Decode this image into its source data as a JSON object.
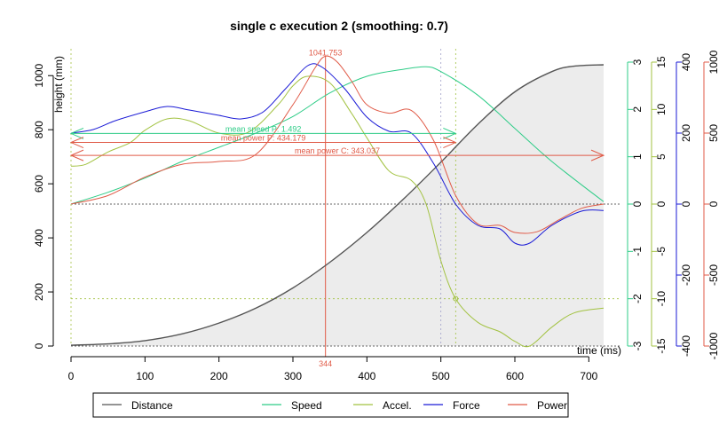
{
  "chart_data": {
    "type": "line",
    "title": "single c execution 2 (smoothing: 0.7)",
    "xlabel": "time (ms)",
    "ylabel": "height (mm)",
    "xlim": [
      0,
      720
    ],
    "ylim": [
      0,
      1050
    ],
    "x_ticks": [
      0,
      100,
      200,
      300,
      400,
      500,
      600,
      700
    ],
    "y_ticks": [
      0,
      200,
      400,
      600,
      800,
      1000
    ],
    "axes": {
      "speed": {
        "color": "#2ecc87",
        "lim": [
          -3,
          3
        ],
        "ticks": [
          -3,
          -2,
          -1,
          0,
          1,
          2,
          3
        ]
      },
      "accel": {
        "color": "#a2c241",
        "lim": [
          -15,
          15
        ],
        "ticks": [
          -15,
          -10,
          -5,
          0,
          5,
          10,
          15
        ]
      },
      "force": {
        "color": "#1a1ad6",
        "lim": [
          -400,
          400
        ],
        "ticks": [
          -400,
          -200,
          0,
          200,
          400
        ]
      },
      "power": {
        "color": "#e05a47",
        "lim": [
          -1000,
          1000
        ],
        "ticks": [
          -1000,
          -500,
          0,
          500,
          1000
        ]
      }
    },
    "series": [
      {
        "name": "Distance",
        "color": "#555555",
        "axis": "left",
        "x": [
          0,
          50,
          100,
          150,
          200,
          250,
          300,
          350,
          400,
          450,
          500,
          550,
          600,
          650,
          680,
          720
        ],
        "y": [
          3,
          8,
          20,
          45,
          85,
          140,
          215,
          310,
          420,
          545,
          680,
          820,
          940,
          1015,
          1035,
          1040
        ]
      },
      {
        "name": "Speed",
        "color": "#2ecc87",
        "axis": "speed",
        "x": [
          0,
          50,
          100,
          150,
          200,
          250,
          300,
          350,
          400,
          450,
          480,
          500,
          550,
          600,
          650,
          720
        ],
        "y": [
          0,
          0.25,
          0.55,
          0.9,
          1.2,
          1.5,
          1.85,
          2.35,
          2.7,
          2.85,
          2.9,
          2.8,
          2.3,
          1.6,
          0.9,
          0.05
        ]
      },
      {
        "name": "Accel.",
        "color": "#a2c241",
        "axis": "accel",
        "x": [
          0,
          20,
          50,
          80,
          100,
          130,
          160,
          200,
          240,
          280,
          300,
          320,
          350,
          380,
          400,
          430,
          460,
          480,
          500,
          520,
          550,
          580,
          600,
          620,
          650,
          680,
          720
        ],
        "y": [
          4,
          4.2,
          5.5,
          6.5,
          7.8,
          9,
          8.8,
          7.5,
          7.6,
          10.5,
          12.5,
          13.5,
          12.8,
          9.5,
          7,
          3.5,
          2.5,
          0,
          -6,
          -10,
          -12.5,
          -13.5,
          -14.5,
          -15,
          -13,
          -11.5,
          -11
        ]
      },
      {
        "name": "Force",
        "color": "#1a1ad6",
        "axis": "force",
        "x": [
          0,
          30,
          60,
          100,
          130,
          160,
          200,
          230,
          260,
          290,
          320,
          340,
          370,
          400,
          430,
          460,
          490,
          520,
          550,
          580,
          600,
          620,
          650,
          690,
          720
        ],
        "y": [
          200,
          210,
          235,
          260,
          275,
          265,
          250,
          240,
          260,
          325,
          390,
          385,
          325,
          245,
          205,
          200,
          115,
          0,
          -60,
          -70,
          -110,
          -110,
          -60,
          -20,
          -18
        ]
      },
      {
        "name": "Power",
        "color": "#e05a47",
        "axis": "power",
        "x": [
          0,
          50,
          100,
          150,
          200,
          250,
          300,
          330,
          344,
          360,
          380,
          400,
          430,
          460,
          490,
          520,
          550,
          580,
          600,
          630,
          660,
          690,
          720
        ],
        "y": [
          0,
          60,
          190,
          280,
          300,
          350,
          700,
          960,
          1041.753,
          1000,
          860,
          700,
          640,
          660,
          450,
          60,
          -140,
          -150,
          -200,
          -195,
          -110,
          -30,
          0
        ]
      }
    ],
    "annotations": [
      {
        "text": "1041.753",
        "x": 344,
        "axis": "power",
        "y": 1041.753,
        "color": "#e05a47"
      },
      {
        "text": "344",
        "x": 344,
        "color": "#e05a47"
      },
      {
        "text": "mean speed P: 1.492",
        "axis": "speed",
        "y": 1.492,
        "x_range": [
          0,
          520
        ],
        "color": "#2ecc87"
      },
      {
        "text": "mean power P: 434.179",
        "axis": "power",
        "y": 434.179,
        "x_range": [
          0,
          520
        ],
        "color": "#e05a47"
      },
      {
        "text": "mean power C: 343.037",
        "axis": "power",
        "y": 343.037,
        "x_range": [
          0,
          720
        ],
        "color": "#e05a47"
      }
    ],
    "legend_position": "bottom"
  }
}
